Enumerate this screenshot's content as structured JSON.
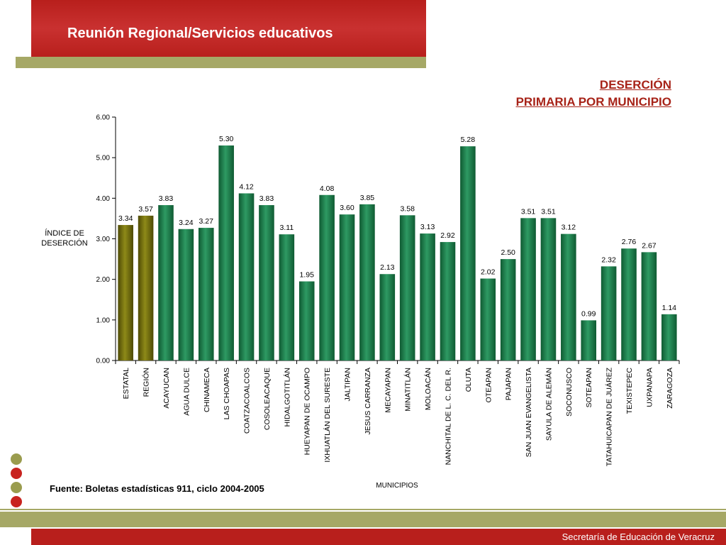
{
  "header": {
    "title": "Reunión Regional/Servicios educativos"
  },
  "chart_title": {
    "line1": "DESERCIÓN",
    "line2": "PRIMARIA POR MUNICIPIO"
  },
  "source": "Fuente: Boletas estadísticas 911, ciclo 2004-2005",
  "footer": {
    "text": "Secretaría de Educación de Veracruz"
  },
  "colors": {
    "brand_red": "#b81f1c",
    "olive": "#a6a866",
    "highlight_bar": "#6e6a0a",
    "bar": "#1e7a4a",
    "title_red": "#a72318"
  },
  "decor_dots": [
    "#9a9c4e",
    "#c8231f",
    "#9a9c4e",
    "#c8231f"
  ],
  "chart_data": {
    "type": "bar",
    "title": "DESERCIÓN PRIMARIA POR MUNICIPIO",
    "xlabel": "MUNICIPIOS",
    "ylabel": "ÍNDICE DE DESERCIÓN",
    "ylim": [
      0,
      6
    ],
    "yticks": [
      "0.00",
      "1.00",
      "2.00",
      "3.00",
      "4.00",
      "5.00",
      "6.00"
    ],
    "grid": false,
    "categories": [
      "ESTATAL",
      "REGIÓN",
      "ACAYUCAN",
      "AGUA DULCE",
      "CHINAMECA",
      "LAS CHOAPAS",
      "COATZACOALCOS",
      "COSOLEACAQUE",
      "HIDALGOTITLÁN",
      "HUEYAPAN DE OCAMPO",
      "IXHUATLÁN DEL SURESTE",
      "JALTIPAN",
      "JESUS CARRANZA",
      "MECAYAPAN",
      "MINATITLÁN",
      "MOLOACÁN",
      "NANCHITAL DE L. C. DEL R.",
      "OLUTA",
      "OTEAPAN",
      "PAJAPAN",
      "SAN JUAN EVANGELISTA",
      "SAYULA DE ALEMÁN",
      "SOCONUSCO",
      "SOTEAPAN",
      "TATAHUICAPAN DE JUÁREZ",
      "TEXISTEPEC",
      "UXPANAPA",
      "ZARAGOZA"
    ],
    "values": [
      3.34,
      3.57,
      3.83,
      3.24,
      3.27,
      5.3,
      4.12,
      3.83,
      3.11,
      1.95,
      4.08,
      3.6,
      3.85,
      2.13,
      3.58,
      3.13,
      2.92,
      5.28,
      2.02,
      2.5,
      3.51,
      3.51,
      3.12,
      0.99,
      2.32,
      2.76,
      2.67,
      1.14
    ],
    "value_labels": [
      "3.34",
      "3.57",
      "3.83",
      "3.24",
      "3.27",
      "5.30",
      "4.12",
      "3.83",
      "3.11",
      "1.95",
      "4.08",
      "3.60",
      "3.85",
      "2.13",
      "3.58",
      "3.13",
      "2.92",
      "5.28",
      "2.02",
      "2.50",
      "3.51",
      "3.51",
      "3.12",
      "0.99",
      "2.32",
      "2.76",
      "2.67",
      "1.14"
    ],
    "highlighted": [
      "ESTATAL",
      "REGIÓN"
    ]
  }
}
